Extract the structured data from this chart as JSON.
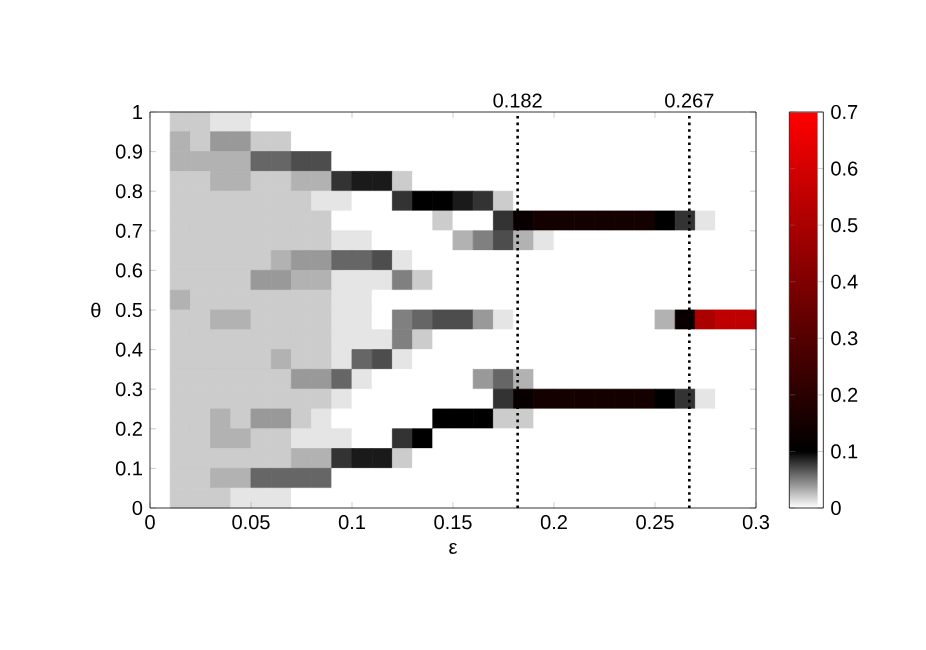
{
  "chart_data": {
    "type": "heatmap",
    "xlabel": "ε",
    "ylabel": "θ",
    "xlim": [
      0,
      0.3
    ],
    "xticks": [
      0,
      0.05,
      0.1,
      0.15,
      0.2,
      0.25,
      0.3
    ],
    "ylim": [
      0,
      1
    ],
    "yticks": [
      0,
      0.1,
      0.2,
      0.3,
      0.4,
      0.5,
      0.6,
      0.7,
      0.8,
      0.9,
      1
    ],
    "clim": [
      0,
      0.7
    ],
    "cticks": [
      0,
      0.1,
      0.2,
      0.3,
      0.4,
      0.5,
      0.6,
      0.7
    ],
    "x": [
      0.005,
      0.015,
      0.025,
      0.035,
      0.045,
      0.055,
      0.065,
      0.075,
      0.085,
      0.095,
      0.105,
      0.115,
      0.125,
      0.135,
      0.145,
      0.155,
      0.165,
      0.175,
      0.185,
      0.195,
      0.205,
      0.215,
      0.225,
      0.235,
      0.245,
      0.255,
      0.265,
      0.275,
      0.285,
      0.295
    ],
    "y": [
      0.975,
      0.925,
      0.875,
      0.825,
      0.775,
      0.725,
      0.675,
      0.625,
      0.575,
      0.525,
      0.475,
      0.425,
      0.375,
      0.325,
      0.275,
      0.225,
      0.175,
      0.125,
      0.075,
      0.025
    ],
    "cells": [
      [
        0,
        0.02,
        0.02,
        0.01,
        0.01,
        0,
        0,
        0,
        0,
        0,
        0,
        0,
        0,
        0,
        0,
        0,
        0,
        0,
        0,
        0,
        0,
        0,
        0,
        0,
        0,
        0,
        0,
        0,
        0,
        0
      ],
      [
        0,
        0.03,
        0.02,
        0.04,
        0.04,
        0.02,
        0.02,
        0,
        0,
        0,
        0,
        0,
        0,
        0,
        0,
        0,
        0,
        0,
        0,
        0,
        0,
        0,
        0,
        0,
        0,
        0,
        0,
        0,
        0,
        0
      ],
      [
        0,
        0.03,
        0.03,
        0.03,
        0.03,
        0.06,
        0.06,
        0.07,
        0.07,
        0,
        0,
        0,
        0,
        0,
        0,
        0,
        0,
        0,
        0,
        0,
        0,
        0,
        0,
        0,
        0,
        0,
        0,
        0,
        0,
        0
      ],
      [
        0,
        0.02,
        0.02,
        0.03,
        0.03,
        0.02,
        0.02,
        0.03,
        0.03,
        0.08,
        0.09,
        0.09,
        0.02,
        0,
        0,
        0,
        0,
        0,
        0,
        0,
        0,
        0,
        0,
        0,
        0,
        0,
        0,
        0,
        0,
        0
      ],
      [
        0,
        0.02,
        0.02,
        0.02,
        0.02,
        0.02,
        0.02,
        0.02,
        0.01,
        0.01,
        0,
        0,
        0.08,
        0.1,
        0.1,
        0.09,
        0.08,
        0.02,
        0,
        0,
        0,
        0,
        0,
        0,
        0,
        0,
        0,
        0,
        0,
        0
      ],
      [
        0,
        0.02,
        0.02,
        0.02,
        0.02,
        0.02,
        0.02,
        0.02,
        0.02,
        0,
        0,
        0,
        0,
        0,
        0.02,
        0,
        0,
        0.08,
        0.12,
        0.15,
        0.15,
        0.15,
        0.15,
        0.15,
        0.15,
        0.1,
        0.08,
        0.01,
        0,
        0
      ],
      [
        0,
        0.02,
        0.02,
        0.02,
        0.02,
        0.02,
        0.02,
        0.02,
        0.02,
        0.01,
        0.01,
        0,
        0,
        0,
        0,
        0.03,
        0.05,
        0.07,
        0.03,
        0.01,
        0,
        0,
        0,
        0,
        0,
        0,
        0,
        0,
        0,
        0
      ],
      [
        0,
        0.02,
        0.02,
        0.02,
        0.02,
        0.02,
        0.03,
        0.04,
        0.04,
        0.06,
        0.06,
        0.07,
        0.01,
        0,
        0,
        0,
        0,
        0,
        0,
        0,
        0,
        0,
        0,
        0,
        0,
        0,
        0,
        0,
        0,
        0
      ],
      [
        0,
        0.02,
        0.02,
        0.02,
        0.02,
        0.04,
        0.04,
        0.03,
        0.03,
        0.01,
        0.01,
        0.01,
        0.05,
        0.02,
        0,
        0,
        0,
        0,
        0,
        0,
        0,
        0,
        0,
        0,
        0,
        0,
        0,
        0,
        0,
        0
      ],
      [
        0,
        0.03,
        0.02,
        0.02,
        0.02,
        0.02,
        0.02,
        0.02,
        0.02,
        0.01,
        0.01,
        0,
        0,
        0,
        0,
        0,
        0,
        0,
        0,
        0,
        0,
        0,
        0,
        0,
        0,
        0,
        0,
        0,
        0,
        0
      ],
      [
        0,
        0.02,
        0.02,
        0.03,
        0.03,
        0.02,
        0.02,
        0.02,
        0.02,
        0.01,
        0.01,
        0,
        0.05,
        0.06,
        0.07,
        0.07,
        0.04,
        0.01,
        0,
        0,
        0,
        0,
        0,
        0,
        0,
        0.03,
        0.12,
        0.5,
        0.55,
        0.55
      ],
      [
        0,
        0.02,
        0.02,
        0.02,
        0.02,
        0.02,
        0.02,
        0.02,
        0.02,
        0.01,
        0.01,
        0.01,
        0.05,
        0.02,
        0,
        0,
        0,
        0,
        0,
        0,
        0,
        0,
        0,
        0,
        0,
        0,
        0,
        0,
        0,
        0
      ],
      [
        0,
        0.02,
        0.02,
        0.02,
        0.02,
        0.02,
        0.03,
        0.02,
        0.02,
        0.01,
        0.06,
        0.07,
        0.01,
        0,
        0,
        0,
        0,
        0,
        0,
        0,
        0,
        0,
        0,
        0,
        0,
        0,
        0,
        0,
        0,
        0
      ],
      [
        0,
        0.02,
        0.02,
        0.02,
        0.02,
        0.02,
        0.02,
        0.04,
        0.04,
        0.06,
        0.01,
        0,
        0,
        0,
        0,
        0,
        0.04,
        0.06,
        0.03,
        0,
        0,
        0,
        0,
        0,
        0,
        0,
        0,
        0,
        0,
        0
      ],
      [
        0,
        0.02,
        0.02,
        0.02,
        0.02,
        0.02,
        0.02,
        0.02,
        0.02,
        0.01,
        0,
        0,
        0,
        0,
        0,
        0,
        0,
        0.08,
        0.12,
        0.15,
        0.15,
        0.15,
        0.15,
        0.15,
        0.15,
        0.1,
        0.08,
        0.01,
        0,
        0
      ],
      [
        0,
        0.02,
        0.02,
        0.03,
        0.02,
        0.04,
        0.04,
        0.02,
        0.01,
        0,
        0,
        0,
        0,
        0,
        0.1,
        0.1,
        0.1,
        0.02,
        0.02,
        0,
        0,
        0,
        0,
        0,
        0,
        0,
        0,
        0,
        0,
        0
      ],
      [
        0,
        0.02,
        0.02,
        0.03,
        0.03,
        0.02,
        0.02,
        0.01,
        0.01,
        0.01,
        0,
        0,
        0.08,
        0.1,
        0,
        0,
        0,
        0,
        0,
        0,
        0,
        0,
        0,
        0,
        0,
        0,
        0,
        0,
        0,
        0
      ],
      [
        0,
        0.02,
        0.02,
        0.02,
        0.02,
        0.02,
        0.02,
        0.03,
        0.03,
        0.08,
        0.09,
        0.09,
        0.02,
        0,
        0,
        0,
        0,
        0,
        0,
        0,
        0,
        0,
        0,
        0,
        0,
        0,
        0,
        0,
        0,
        0
      ],
      [
        0,
        0.02,
        0.02,
        0.03,
        0.03,
        0.06,
        0.06,
        0.06,
        0.06,
        0,
        0,
        0,
        0,
        0,
        0,
        0,
        0,
        0,
        0,
        0,
        0,
        0,
        0,
        0,
        0,
        0,
        0,
        0,
        0,
        0
      ],
      [
        0,
        0.02,
        0.02,
        0.02,
        0.01,
        0.01,
        0.01,
        0,
        0,
        0,
        0,
        0,
        0,
        0,
        0,
        0,
        0,
        0,
        0,
        0,
        0,
        0,
        0,
        0,
        0,
        0,
        0,
        0,
        0,
        0
      ]
    ],
    "ref_lines": [
      {
        "axis": "x",
        "value": 0.182,
        "label": "0.182",
        "line_style": "dotted"
      },
      {
        "axis": "x",
        "value": 0.267,
        "label": "0.267",
        "line_style": "dotted"
      }
    ]
  }
}
